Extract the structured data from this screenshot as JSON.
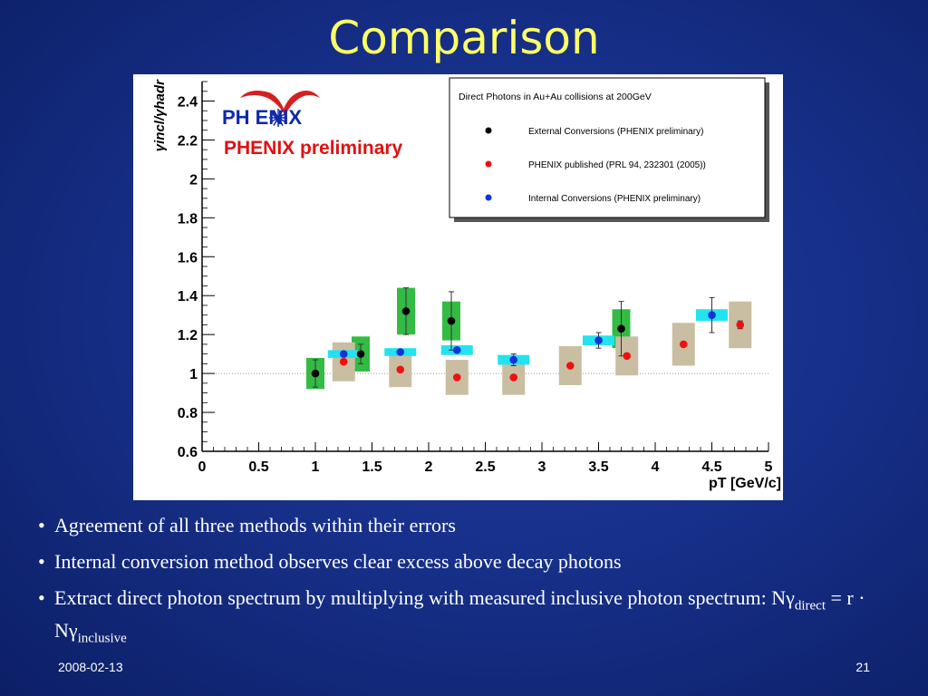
{
  "slide": {
    "title": "Comparison",
    "date": "2008-02-13",
    "page": "21"
  },
  "bullets": {
    "b1": "Agreement of all three methods within their errors",
    "b2": "Internal conversion method observes clear excess above decay photons",
    "b3_text": "Extract direct photon spectrum by multiplying with measured inclusive photon spectrum: Nγ",
    "b3_sub1": "direct",
    "b3_mid": " = r · Nγ",
    "b3_sub2": "inclusive"
  },
  "chart_data": {
    "type": "scatter",
    "logo_text": "PH  ENIX",
    "preliminary_label": "PHENIX preliminary",
    "ylabel": "γincl/γhadr",
    "xlabel": "pT [GeV/c]",
    "xlim": [
      0,
      5
    ],
    "ylim": [
      0.6,
      2.5
    ],
    "xticks": [
      "0",
      "0.5",
      "1",
      "1.5",
      "2",
      "2.5",
      "3",
      "3.5",
      "4",
      "4.5",
      "5"
    ],
    "yticks": [
      "0.6",
      "0.8",
      "1",
      "1.2",
      "1.4",
      "1.6",
      "1.8",
      "2",
      "2.2",
      "2.4"
    ],
    "reference_line": 1.0,
    "legend_title": "Direct Photons in Au+Au collisions at 200GeV",
    "legend_position": "top-right",
    "colors": {
      "black": "#000000",
      "red": "#ee1111",
      "blue": "#1133dd",
      "green": "#33bb44",
      "tan": "#c9bea2",
      "cyan": "#22e3f0"
    },
    "series": [
      {
        "name": "External Conversions (PHENIX preliminary)",
        "color": "#000000",
        "box_color": "#33bb44",
        "points": [
          {
            "x": 1.0,
            "y": 1.0,
            "err": 0.07,
            "box": 0.08
          },
          {
            "x": 1.4,
            "y": 1.1,
            "err": 0.05,
            "box": 0.09
          },
          {
            "x": 1.8,
            "y": 1.32,
            "err": 0.12,
            "box": 0.12
          },
          {
            "x": 2.2,
            "y": 1.27,
            "err": 0.15,
            "box": 0.1
          },
          {
            "x": 3.7,
            "y": 1.23,
            "err": 0.14,
            "box": 0.1
          }
        ]
      },
      {
        "name": "PHENIX published (PRL 94, 232301 (2005))",
        "color": "#ee1111",
        "box_color": "#c9bea2",
        "points": [
          {
            "x": 1.25,
            "y": 1.06,
            "err": 0.0,
            "box": 0.1
          },
          {
            "x": 1.75,
            "y": 1.02,
            "err": 0.0,
            "box": 0.09
          },
          {
            "x": 2.25,
            "y": 0.98,
            "err": 0.0,
            "box": 0.09
          },
          {
            "x": 2.75,
            "y": 0.98,
            "err": 0.0,
            "box": 0.09
          },
          {
            "x": 3.25,
            "y": 1.04,
            "err": 0.0,
            "box": 0.1
          },
          {
            "x": 3.75,
            "y": 1.09,
            "err": 0.0,
            "box": 0.1
          },
          {
            "x": 4.25,
            "y": 1.15,
            "err": 0.0,
            "box": 0.11
          },
          {
            "x": 4.75,
            "y": 1.25,
            "err": 0.02,
            "box": 0.12
          }
        ]
      },
      {
        "name": "Internal Conversions (PHENIX preliminary)",
        "color": "#1133dd",
        "box_color": "#22e3f0",
        "points": [
          {
            "x": 1.25,
            "y": 1.1,
            "err": 0.0,
            "box": 0.02
          },
          {
            "x": 1.75,
            "y": 1.11,
            "err": 0.0,
            "box": 0.02
          },
          {
            "x": 2.25,
            "y": 1.12,
            "err": 0.0,
            "box": 0.025
          },
          {
            "x": 2.75,
            "y": 1.07,
            "err": 0.03,
            "box": 0.025
          },
          {
            "x": 3.5,
            "y": 1.17,
            "err": 0.04,
            "box": 0.025
          },
          {
            "x": 4.5,
            "y": 1.3,
            "err": 0.09,
            "box": 0.03
          }
        ]
      }
    ]
  }
}
